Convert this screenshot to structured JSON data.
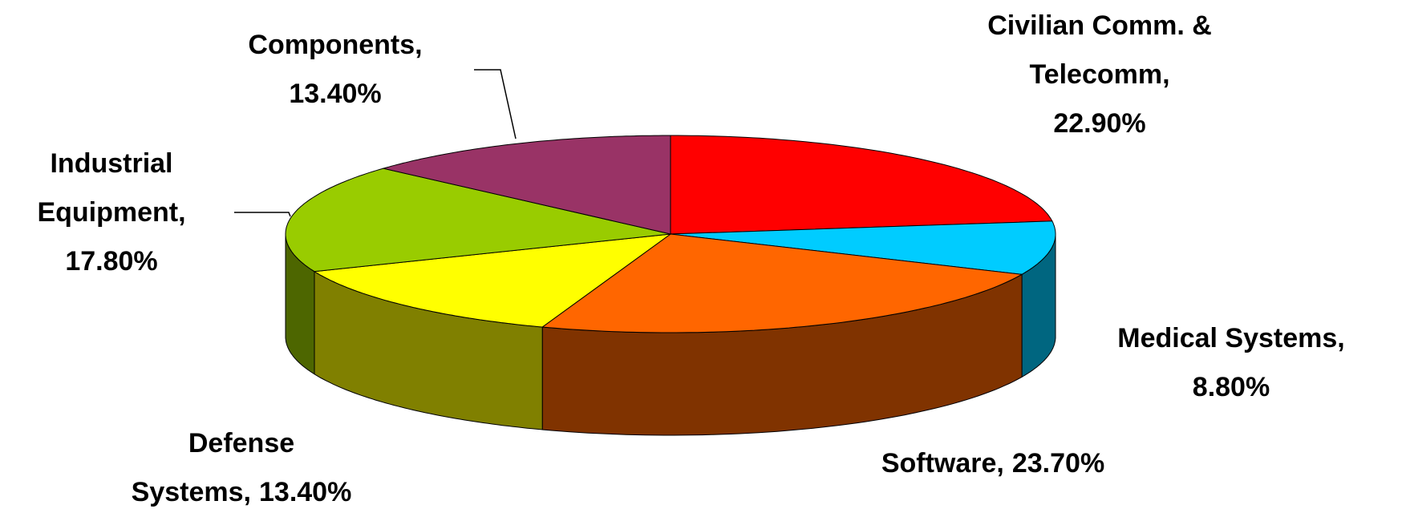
{
  "chart_data": {
    "type": "pie3d",
    "categories": [
      "Civilian Comm. & Telecomm,",
      "Medical Systems,",
      "Software,",
      "Defense Systems,",
      "Industrial Equipment,",
      "Components,"
    ],
    "values": [
      22.9,
      8.8,
      23.7,
      13.4,
      17.8,
      13.4
    ],
    "value_labels": [
      "22.90%",
      "8.80%",
      "23.70%",
      "13.40%",
      "17.80%",
      "13.40%"
    ],
    "colors": [
      "#ff0000",
      "#00ccff",
      "#ff6600",
      "#ffff00",
      "#99cc00",
      "#993366"
    ]
  }
}
